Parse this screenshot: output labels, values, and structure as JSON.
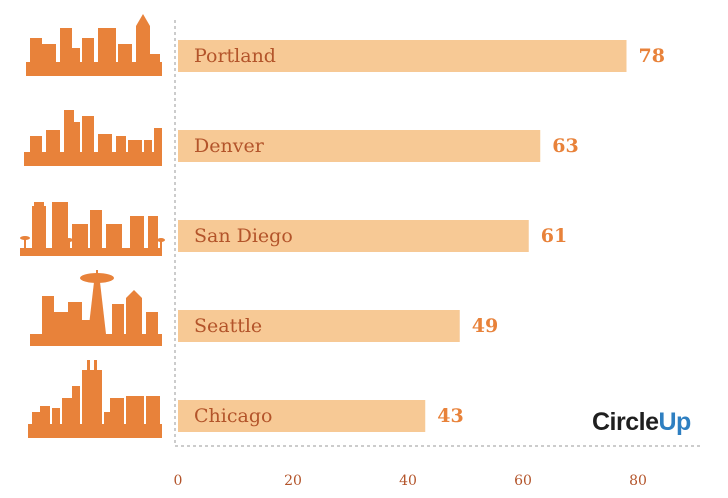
{
  "chart_data": {
    "type": "bar",
    "orientation": "horizontal",
    "categories": [
      "Portland",
      "Denver",
      "San Diego",
      "Seattle",
      "Chicago"
    ],
    "values": [
      78,
      63,
      61,
      49,
      43
    ],
    "xlim": [
      0,
      90
    ],
    "xticks": [
      0,
      20,
      40,
      60,
      80
    ],
    "title": "",
    "xlabel": "",
    "ylabel": "",
    "grid": false,
    "colors": {
      "bar": "#f7c995",
      "bar_label": "#b3542a",
      "value_label": "#e8823a",
      "skyline": "#e8823a",
      "tick_label": "#b3542a"
    },
    "row_icons": [
      "portland-skyline-icon",
      "denver-skyline-icon",
      "san-diego-skyline-icon",
      "seattle-skyline-icon",
      "chicago-skyline-icon"
    ]
  },
  "logo": {
    "part1": "Circle",
    "part2": "Up"
  }
}
